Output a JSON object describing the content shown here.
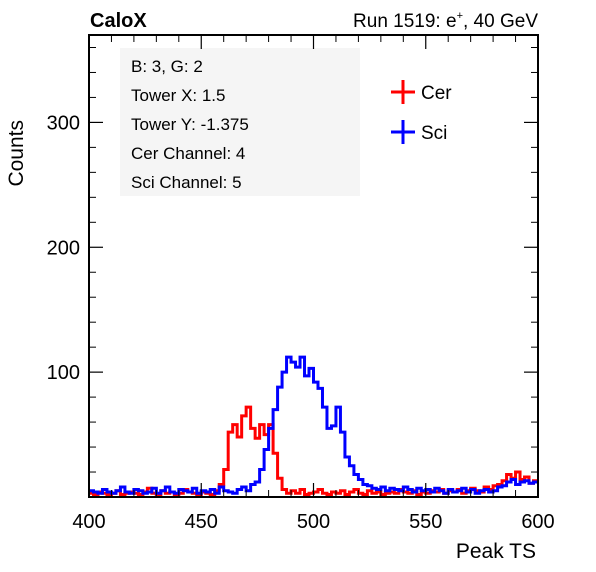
{
  "header": {
    "left_label": "CaloX",
    "right_prefix": "Run 1519: e",
    "right_sup": "+",
    "right_suffix": ", 40 GeV"
  },
  "info_box": {
    "lines": [
      "B: 3, G: 2",
      "Tower X: 1.5",
      "Tower Y: -1.375",
      "Cer Channel: 4",
      "Sci Channel: 5"
    ]
  },
  "chart_data": {
    "type": "line",
    "xlabel": "Peak TS",
    "ylabel": "Counts",
    "xlim": [
      400,
      600
    ],
    "ylim": [
      0,
      370
    ],
    "xticks": [
      400,
      450,
      500,
      550,
      600
    ],
    "yticks": [
      100,
      200,
      300
    ],
    "legend_position": "top-right",
    "grid": false,
    "series": [
      {
        "name": "Cer",
        "color": "#ff0000",
        "x": [
          400,
          402,
          404,
          406,
          408,
          410,
          412,
          414,
          416,
          418,
          420,
          422,
          424,
          426,
          428,
          430,
          432,
          434,
          436,
          438,
          440,
          442,
          444,
          446,
          448,
          450,
          452,
          454,
          456,
          458,
          460,
          462,
          464,
          466,
          468,
          470,
          472,
          474,
          476,
          478,
          480,
          482,
          484,
          486,
          488,
          490,
          492,
          494,
          496,
          498,
          500,
          502,
          504,
          506,
          508,
          510,
          512,
          514,
          516,
          518,
          520,
          522,
          524,
          526,
          528,
          530,
          532,
          534,
          536,
          538,
          540,
          542,
          544,
          546,
          548,
          550,
          552,
          554,
          556,
          558,
          560,
          562,
          564,
          566,
          568,
          570,
          572,
          574,
          576,
          578,
          580,
          582,
          584,
          586,
          588,
          590,
          592,
          594,
          596,
          598
        ],
        "values": [
          3,
          2,
          4,
          3,
          2,
          3,
          5,
          2,
          3,
          4,
          3,
          2,
          4,
          7,
          3,
          2,
          5,
          3,
          4,
          2,
          3,
          6,
          4,
          3,
          2,
          4,
          3,
          2,
          5,
          10,
          22,
          52,
          58,
          48,
          65,
          72,
          55,
          47,
          58,
          50,
          58,
          35,
          15,
          6,
          3,
          5,
          3,
          6,
          2,
          3,
          4,
          6,
          3,
          2,
          4,
          3,
          5,
          2,
          4,
          6,
          3,
          2,
          5,
          3,
          4,
          2,
          3,
          4,
          3,
          6,
          4,
          3,
          5,
          2,
          4,
          3,
          5,
          4,
          6,
          3,
          5,
          4,
          6,
          3,
          5,
          7,
          5,
          4,
          8,
          6,
          9,
          10,
          13,
          18,
          15,
          20,
          14,
          16,
          11,
          13
        ]
      },
      {
        "name": "Sci",
        "color": "#0000ff",
        "x": [
          400,
          402,
          404,
          406,
          408,
          410,
          412,
          414,
          416,
          418,
          420,
          422,
          424,
          426,
          428,
          430,
          432,
          434,
          436,
          438,
          440,
          442,
          444,
          446,
          448,
          450,
          452,
          454,
          456,
          458,
          460,
          462,
          464,
          466,
          468,
          470,
          472,
          474,
          476,
          478,
          480,
          482,
          484,
          486,
          488,
          490,
          492,
          494,
          496,
          498,
          500,
          502,
          504,
          506,
          508,
          510,
          512,
          514,
          516,
          518,
          520,
          522,
          524,
          526,
          528,
          530,
          532,
          534,
          536,
          538,
          540,
          542,
          544,
          546,
          548,
          550,
          552,
          554,
          556,
          558,
          560,
          562,
          564,
          566,
          568,
          570,
          572,
          574,
          576,
          578,
          580,
          582,
          584,
          586,
          588,
          590,
          592,
          594,
          596,
          598
        ],
        "values": [
          5,
          4,
          3,
          6,
          4,
          3,
          5,
          8,
          4,
          3,
          6,
          5,
          3,
          4,
          7,
          3,
          5,
          8,
          4,
          3,
          6,
          5,
          4,
          7,
          3,
          5,
          4,
          6,
          3,
          8,
          5,
          4,
          3,
          6,
          8,
          5,
          10,
          12,
          22,
          38,
          55,
          70,
          88,
          100,
          112,
          108,
          104,
          112,
          97,
          103,
          92,
          87,
          72,
          55,
          57,
          72,
          52,
          32,
          25,
          18,
          14,
          10,
          9,
          7,
          6,
          8,
          5,
          7,
          6,
          5,
          8,
          6,
          4,
          7,
          5,
          6,
          4,
          7,
          5,
          3,
          6,
          4,
          5,
          7,
          4,
          6,
          3,
          5,
          6,
          4,
          5,
          8,
          9,
          12,
          14,
          10,
          12,
          13,
          11,
          12
        ]
      }
    ]
  }
}
